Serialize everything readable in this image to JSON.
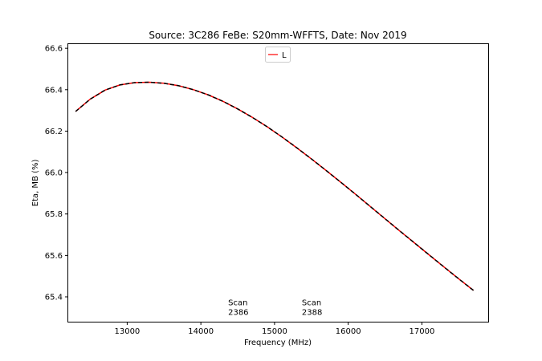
{
  "chart_data": {
    "type": "line",
    "title": "Source: 3C286 FeBe: S20mm-WFFTS, Date: Nov 2019",
    "xlabel": "Frequency (MHz)",
    "ylabel": "Eta, MB (%)",
    "xlim": [
      12200,
      17900
    ],
    "ylim": [
      65.28,
      66.62
    ],
    "xticks": [
      13000,
      14000,
      15000,
      16000,
      17000
    ],
    "yticks": [
      65.4,
      65.6,
      65.8,
      66.0,
      66.2,
      66.4,
      66.6
    ],
    "xtick_labels": [
      "13000",
      "14000",
      "15000",
      "16000",
      "17000"
    ],
    "ytick_labels": [
      "65.4",
      "65.6",
      "65.8",
      "66.0",
      "66.2",
      "66.4",
      "66.6"
    ],
    "grid": false,
    "legend": {
      "position": "top-center",
      "entries": [
        "L"
      ]
    },
    "series": [
      {
        "name": "L",
        "color": "#ff0000",
        "style": "solid",
        "x": [
          12300,
          12500,
          12700,
          12900,
          13100,
          13300,
          13500,
          13700,
          13900,
          14100,
          14300,
          14500,
          14700,
          14900,
          15100,
          15300,
          15500,
          15700,
          15900,
          16100,
          16300,
          16500,
          16700,
          16900,
          17100,
          17300,
          17500,
          17700
        ],
        "y": [
          66.295,
          66.355,
          66.398,
          66.423,
          66.434,
          66.436,
          66.431,
          66.419,
          66.4,
          66.375,
          66.344,
          66.307,
          66.266,
          66.221,
          66.172,
          66.12,
          66.066,
          66.01,
          65.953,
          65.895,
          65.836,
          65.777,
          65.718,
          65.66,
          65.602,
          65.544,
          65.487,
          65.431
        ]
      },
      {
        "color": "#000000",
        "style": "dashed",
        "x": [
          12300,
          12500,
          12700,
          12900,
          13100,
          13300,
          13500,
          13700,
          13900,
          14100,
          14300,
          14500,
          14700,
          14900,
          15100,
          15300,
          15500,
          15700,
          15900,
          16100,
          16300,
          16500,
          16700,
          16900,
          17100,
          17300,
          17500,
          17700
        ],
        "y": [
          66.295,
          66.355,
          66.398,
          66.423,
          66.434,
          66.436,
          66.431,
          66.419,
          66.4,
          66.375,
          66.344,
          66.307,
          66.266,
          66.221,
          66.172,
          66.12,
          66.066,
          66.01,
          65.953,
          65.895,
          65.836,
          65.777,
          65.718,
          65.66,
          65.602,
          65.544,
          65.487,
          65.431
        ]
      }
    ],
    "annotations": [
      {
        "lines": [
          "Scan",
          "2386"
        ],
        "x": 14370,
        "y": 65.36
      },
      {
        "lines": [
          "Scan",
          "2388"
        ],
        "x": 15370,
        "y": 65.36
      }
    ]
  }
}
